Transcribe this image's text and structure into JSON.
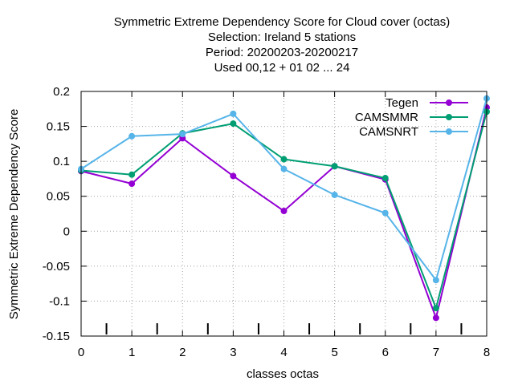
{
  "chart_data": {
    "type": "line",
    "title_lines": [
      "Symmetric Extreme Dependency Score  for Cloud cover (octas)",
      "Selection: Ireland      5 stations",
      "Period: 20200203-20200217",
      "Used  00,12  + 01 02 ... 24"
    ],
    "xlabel": "classes octas",
    "ylabel": "Symmetric Extreme Dependency Score",
    "xlim": [
      0,
      8
    ],
    "ylim": [
      -0.15,
      0.2
    ],
    "x_ticks": [
      0,
      1,
      2,
      3,
      4,
      5,
      6,
      7,
      8
    ],
    "x_tick_labels": [
      "0",
      "1",
      "2",
      "3",
      "4",
      "5",
      "6",
      "7",
      "8"
    ],
    "y_ticks": [
      -0.15,
      -0.1,
      -0.05,
      0,
      0.05,
      0.1,
      0.15,
      0.2
    ],
    "y_tick_labels": [
      "-0.15",
      "-0.1",
      "-0.05",
      "0",
      "0.05",
      "0.1",
      "0.15",
      "0.2"
    ],
    "minor_x_ticks": [
      0.5,
      1.5,
      2.5,
      3.5,
      4.5,
      5.5,
      6.5,
      7.5
    ],
    "grid": true,
    "legend_position": "top-right",
    "x": [
      0,
      1,
      2,
      3,
      4,
      5,
      6,
      7,
      8
    ],
    "series": [
      {
        "name": "Tegen",
        "color": "#9400d3",
        "values": [
          0.086,
          0.068,
          0.133,
          0.079,
          0.029,
          0.093,
          0.074,
          -0.124,
          0.177
        ]
      },
      {
        "name": "CAMSMMR",
        "color": "#009e73",
        "values": [
          0.087,
          0.081,
          0.14,
          0.154,
          0.103,
          0.093,
          0.076,
          -0.11,
          0.171
        ]
      },
      {
        "name": "CAMSNRT",
        "color": "#56b4e9",
        "values": [
          0.089,
          0.136,
          0.139,
          0.168,
          0.089,
          0.052,
          0.026,
          -0.07,
          0.19
        ]
      }
    ]
  }
}
